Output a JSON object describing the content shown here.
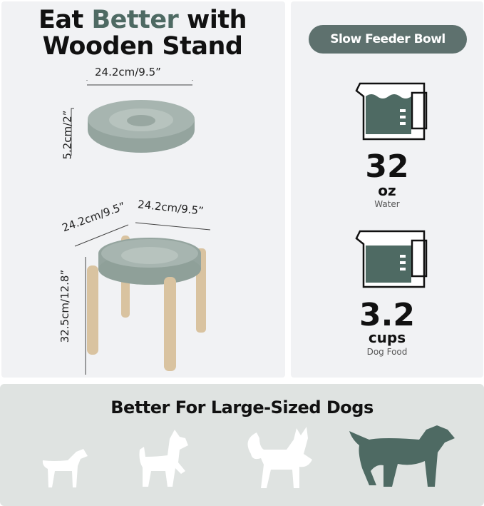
{
  "left": {
    "title_part1": "Eat ",
    "title_accent": "Better",
    "title_part2": " with",
    "title_line2": "Wooden Stand",
    "bowl_width": "24.2cm/9.5”",
    "bowl_height": "5.2cm/2”",
    "stand_depth": "24.2cm/9.5”",
    "stand_width": "24.2cm/9.5”",
    "stand_height": "32.5cm/12.8”"
  },
  "right": {
    "badge": "Slow Feeder Bowl",
    "water_value": "32",
    "water_unit": "oz",
    "water_label": "Water",
    "food_value": "3.2",
    "food_unit": "cups",
    "food_label": "Dog Food"
  },
  "bottom": {
    "title": "Better For  Large-Sized Dogs",
    "dog_icons": [
      "small-dog-icon",
      "terrier-icon",
      "husky-icon",
      "large-dog-icon"
    ]
  },
  "colors": {
    "accent": "#4e6a63",
    "panel": "#f1f2f4",
    "bottom_panel": "#dfe3e1",
    "bowl": "#a3b1ab",
    "wood": "#d9c3a0"
  }
}
